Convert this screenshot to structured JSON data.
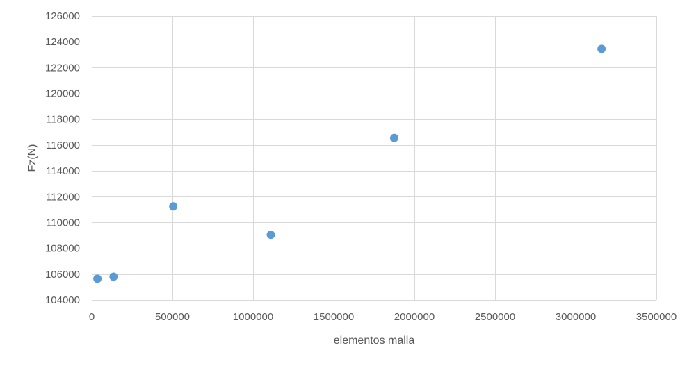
{
  "chart_data": {
    "type": "scatter",
    "title": "",
    "xlabel": "elementos malla",
    "ylabel": "Fz(N)",
    "xlim": [
      0,
      3500000
    ],
    "ylim": [
      104000,
      126000
    ],
    "x_ticks": [
      0,
      500000,
      1000000,
      1500000,
      2000000,
      2500000,
      3000000,
      3500000
    ],
    "x_tick_labels": [
      "0",
      "500000",
      "1000000",
      "1500000",
      "2000000",
      "2500000",
      "3000000",
      "3500000"
    ],
    "y_ticks": [
      104000,
      106000,
      108000,
      110000,
      112000,
      114000,
      116000,
      118000,
      120000,
      122000,
      124000,
      126000
    ],
    "y_tick_labels": [
      "104000",
      "106000",
      "108000",
      "110000",
      "112000",
      "114000",
      "116000",
      "118000",
      "120000",
      "122000",
      "124000",
      "126000"
    ],
    "grid": true,
    "legend": "none",
    "series": [
      {
        "color": "#5b9bd5",
        "points": [
          {
            "x": 35000,
            "y": 105650
          },
          {
            "x": 135000,
            "y": 105800
          },
          {
            "x": 505000,
            "y": 111250
          },
          {
            "x": 1110000,
            "y": 109050
          },
          {
            "x": 1875000,
            "y": 116550
          },
          {
            "x": 3160000,
            "y": 123450
          }
        ]
      }
    ]
  }
}
